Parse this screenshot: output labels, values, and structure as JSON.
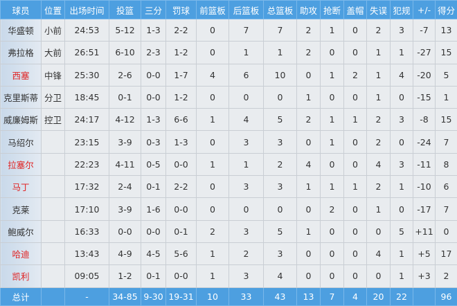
{
  "headers": [
    "球员",
    "位置",
    "出场时间",
    "投篮",
    "三分",
    "罚球",
    "前篮板",
    "后篮板",
    "总篮板",
    "助攻",
    "抢断",
    "盖帽",
    "失误",
    "犯规",
    "+/-",
    "得分"
  ],
  "highlight_color": "#e02424",
  "header_color": "#4d9fe0",
  "rows": [
    {
      "highlight": false,
      "cells": [
        "华盛顿",
        "小前",
        "24:53",
        "5-12",
        "1-3",
        "2-2",
        "0",
        "7",
        "7",
        "2",
        "1",
        "0",
        "2",
        "3",
        "-7",
        "13"
      ]
    },
    {
      "highlight": false,
      "cells": [
        "弗拉格",
        "大前",
        "26:51",
        "6-10",
        "2-3",
        "1-2",
        "0",
        "1",
        "1",
        "2",
        "0",
        "0",
        "1",
        "1",
        "-27",
        "15"
      ]
    },
    {
      "highlight": true,
      "cells": [
        "西塞",
        "中锋",
        "25:30",
        "2-6",
        "0-0",
        "1-7",
        "4",
        "6",
        "10",
        "0",
        "1",
        "2",
        "1",
        "4",
        "-20",
        "5"
      ]
    },
    {
      "highlight": false,
      "cells": [
        "克里斯蒂",
        "分卫",
        "18:45",
        "0-1",
        "0-0",
        "1-2",
        "0",
        "0",
        "0",
        "1",
        "0",
        "0",
        "1",
        "0",
        "-15",
        "1"
      ]
    },
    {
      "highlight": false,
      "cells": [
        "威廉姆斯",
        "控卫",
        "24:17",
        "4-12",
        "1-3",
        "6-6",
        "1",
        "4",
        "5",
        "2",
        "1",
        "1",
        "2",
        "3",
        "-8",
        "15"
      ]
    },
    {
      "highlight": false,
      "cells": [
        "马绍尔",
        "",
        "23:15",
        "3-9",
        "0-3",
        "1-3",
        "0",
        "3",
        "3",
        "0",
        "1",
        "0",
        "2",
        "0",
        "-24",
        "7"
      ]
    },
    {
      "highlight": true,
      "cells": [
        "拉塞尔",
        "",
        "22:23",
        "4-11",
        "0-5",
        "0-0",
        "1",
        "1",
        "2",
        "4",
        "0",
        "0",
        "4",
        "3",
        "-11",
        "8"
      ]
    },
    {
      "highlight": true,
      "cells": [
        "马丁",
        "",
        "17:32",
        "2-4",
        "0-1",
        "2-2",
        "0",
        "3",
        "3",
        "1",
        "1",
        "1",
        "2",
        "1",
        "-10",
        "6"
      ]
    },
    {
      "highlight": false,
      "cells": [
        "克莱",
        "",
        "17:10",
        "3-9",
        "1-6",
        "0-0",
        "0",
        "0",
        "0",
        "0",
        "2",
        "0",
        "1",
        "0",
        "-17",
        "7"
      ]
    },
    {
      "highlight": false,
      "cells": [
        "鲍威尔",
        "",
        "16:33",
        "0-0",
        "0-0",
        "0-1",
        "2",
        "3",
        "5",
        "1",
        "0",
        "0",
        "0",
        "5",
        "+11",
        "0"
      ]
    },
    {
      "highlight": true,
      "cells": [
        "哈迪",
        "",
        "13:43",
        "4-9",
        "4-5",
        "5-6",
        "1",
        "2",
        "3",
        "0",
        "0",
        "0",
        "4",
        "1",
        "+5",
        "17"
      ]
    },
    {
      "highlight": true,
      "cells": [
        "凯利",
        "",
        "09:05",
        "1-2",
        "0-1",
        "0-0",
        "1",
        "3",
        "4",
        "0",
        "0",
        "0",
        "0",
        "1",
        "+3",
        "2"
      ]
    }
  ],
  "totals": [
    "总计",
    "",
    "-",
    "34-85",
    "9-30",
    "19-31",
    "10",
    "33",
    "43",
    "13",
    "7",
    "4",
    "20",
    "22",
    "",
    "96"
  ]
}
